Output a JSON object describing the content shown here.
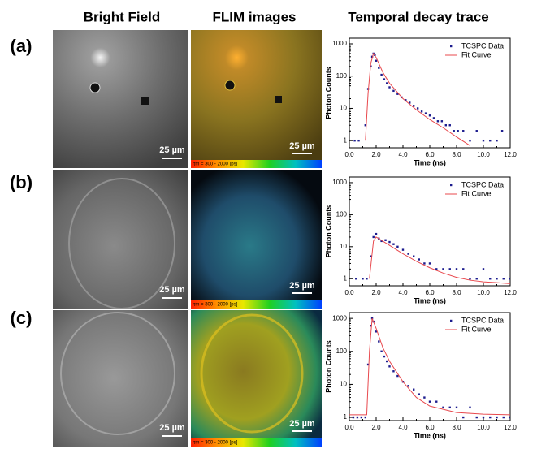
{
  "headers": [
    "Bright Field",
    "FLIM images",
    "Temporal decay trace"
  ],
  "panel_labels": [
    "(a)",
    "(b)",
    "(c)"
  ],
  "scale_bar_label": "25 µm",
  "colorbar_label": "τm = 300 - 2000 [ps]",
  "chart_data": [
    {
      "type": "scatter-line",
      "xlabel": "Time (ns)",
      "ylabel": "Photon Counts",
      "log_y": true,
      "legend_position": "upper right",
      "xlim": [
        0,
        12
      ],
      "xticks": [
        {
          "value": 0,
          "label": "0.0"
        },
        {
          "value": 2,
          "label": "2.0"
        },
        {
          "value": 4,
          "label": "4.0"
        },
        {
          "value": 6,
          "label": "6.0"
        },
        {
          "value": 8,
          "label": "8.0"
        },
        {
          "value": 10,
          "label": "10.0"
        },
        {
          "value": 12,
          "label": "12.0"
        }
      ],
      "ylim": [
        0.6,
        1500
      ],
      "yticks": [
        1,
        10,
        100,
        1000
      ],
      "series": [
        {
          "name": "TCSPC Data",
          "color": "#1c1c8e",
          "kind": "points",
          "x": [
            0.4,
            0.7,
            1.2,
            1.4,
            1.6,
            1.7,
            1.8,
            1.9,
            2.0,
            2.2,
            2.4,
            2.6,
            2.8,
            3.0,
            3.3,
            3.6,
            3.9,
            4.2,
            4.5,
            4.8,
            5.1,
            5.4,
            5.7,
            6.0,
            6.3,
            6.6,
            6.9,
            7.2,
            7.5,
            7.8,
            8.1,
            8.5,
            9.0,
            9.5,
            10.0,
            10.5,
            11.0,
            11.4
          ],
          "values": [
            1,
            1,
            3,
            40,
            200,
            400,
            500,
            450,
            300,
            180,
            110,
            80,
            60,
            45,
            35,
            28,
            22,
            18,
            15,
            12,
            10,
            8,
            7,
            6,
            5,
            4,
            4,
            3,
            3,
            2,
            2,
            2,
            1,
            2,
            1,
            1,
            1,
            2
          ]
        },
        {
          "name": "Fit Curve",
          "color": "#e8484d",
          "kind": "line",
          "x": [
            1.2,
            1.4,
            1.6,
            1.8,
            2.0,
            2.5,
            3,
            4,
            5,
            6,
            7,
            8,
            9
          ],
          "values": [
            1,
            30,
            250,
            500,
            380,
            130,
            60,
            20,
            9,
            4.5,
            2.5,
            1.3,
            0.7
          ]
        }
      ]
    },
    {
      "type": "scatter-line",
      "xlabel": "Time (ns)",
      "ylabel": "Photon Counts",
      "log_y": true,
      "legend_position": "upper right",
      "xlim": [
        0,
        12
      ],
      "xticks": [
        {
          "value": 0,
          "label": "0.0"
        },
        {
          "value": 2,
          "label": "2.0"
        },
        {
          "value": 4,
          "label": "4.0"
        },
        {
          "value": 6,
          "label": "6.0"
        },
        {
          "value": 8,
          "label": "8.0"
        },
        {
          "value": 10,
          "label": "10.0"
        },
        {
          "value": 12,
          "label": "12.0"
        }
      ],
      "ylim": [
        0.6,
        1500
      ],
      "yticks": [
        1,
        10,
        100,
        1000
      ],
      "series": [
        {
          "name": "TCSPC Data",
          "color": "#1c1c8e",
          "kind": "points",
          "x": [
            0.5,
            1.0,
            1.3,
            1.6,
            1.8,
            2.0,
            2.2,
            2.4,
            2.7,
            3.0,
            3.3,
            3.6,
            4.0,
            4.4,
            4.8,
            5.2,
            5.6,
            6.0,
            6.5,
            7.0,
            7.5,
            8.0,
            8.5,
            9.0,
            9.5,
            10.0,
            10.5,
            11.0,
            11.5,
            12.0
          ],
          "values": [
            1,
            1,
            1,
            5,
            20,
            25,
            18,
            15,
            16,
            14,
            12,
            10,
            8,
            6,
            5,
            4,
            3,
            3,
            2,
            2,
            2,
            2,
            2,
            1,
            1,
            2,
            1,
            1,
            1,
            1
          ]
        },
        {
          "name": "Fit Curve",
          "color": "#e8484d",
          "kind": "line",
          "x": [
            1.5,
            1.8,
            2.0,
            3,
            4,
            5,
            6,
            7,
            8,
            9,
            10,
            11,
            12
          ],
          "values": [
            1,
            15,
            20,
            11,
            6,
            3.5,
            2.2,
            1.5,
            1.1,
            0.9,
            0.8,
            0.75,
            0.7
          ]
        }
      ]
    },
    {
      "type": "scatter-line",
      "xlabel": "Time (ns)",
      "ylabel": "Photon Counts",
      "log_y": true,
      "legend_position": "upper right",
      "xlim": [
        0,
        12
      ],
      "xticks": [
        {
          "value": 0,
          "label": "0.0"
        },
        {
          "value": 2,
          "label": "2.0"
        },
        {
          "value": 4,
          "label": "4.0"
        },
        {
          "value": 6,
          "label": "6.0"
        },
        {
          "value": 8,
          "label": "8.0"
        },
        {
          "value": 10,
          "label": "10.0"
        },
        {
          "value": 12,
          "label": "12.0"
        }
      ],
      "ylim": [
        0.8,
        1500
      ],
      "yticks": [
        1,
        10,
        100,
        1000
      ],
      "series": [
        {
          "name": "TCSPC Data",
          "color": "#1c1c8e",
          "kind": "points",
          "x": [
            0.3,
            0.6,
            0.9,
            1.2,
            1.4,
            1.6,
            1.7,
            1.8,
            2.0,
            2.2,
            2.4,
            2.6,
            2.8,
            3.0,
            3.3,
            3.6,
            4.0,
            4.4,
            4.8,
            5.2,
            5.6,
            6.0,
            6.5,
            7.0,
            7.5,
            8.0,
            8.5,
            9.0,
            9.5,
            10.0,
            10.5,
            11.0,
            11.5,
            12.0
          ],
          "values": [
            1,
            1,
            1,
            1,
            40,
            600,
            1000,
            800,
            400,
            200,
            100,
            70,
            50,
            35,
            25,
            18,
            12,
            9,
            7,
            5,
            4,
            3,
            3,
            2,
            2,
            2,
            1,
            2,
            1,
            1,
            1,
            1,
            1,
            1
          ]
        },
        {
          "name": "Fit Curve",
          "color": "#e8484d",
          "kind": "line",
          "x": [
            0,
            1.3,
            1.5,
            1.7,
            2.0,
            2.5,
            3,
            4,
            5,
            6,
            8,
            10,
            12
          ],
          "values": [
            1.2,
            1.2,
            100,
            1000,
            500,
            130,
            50,
            12,
            4,
            2.2,
            1.4,
            1.25,
            1.2
          ]
        }
      ]
    }
  ]
}
